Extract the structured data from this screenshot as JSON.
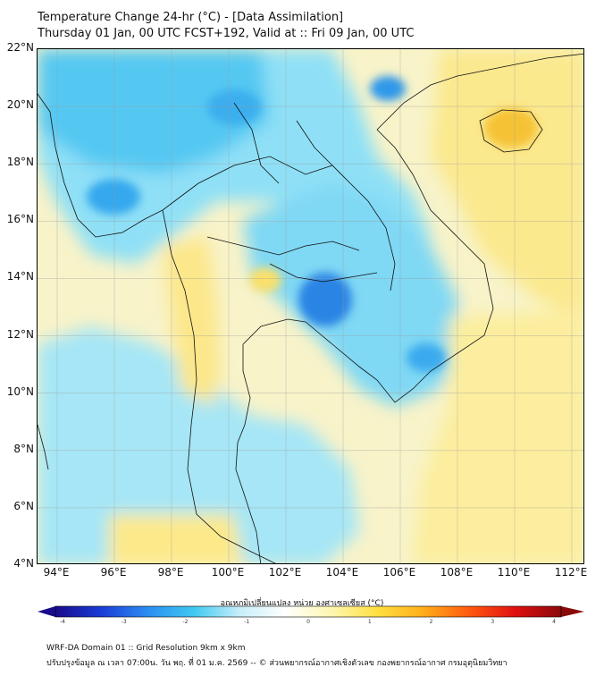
{
  "title": {
    "line1": "Temperature Change 24-hr (°C) - [Data Assimilation]",
    "line2": "Thursday 01 Jan, 00 UTC FCST+192, Valid at :: Fri 09 Jan, 00 UTC"
  },
  "axes": {
    "lat_labels": [
      "22°N",
      "20°N",
      "18°N",
      "16°N",
      "14°N",
      "12°N",
      "10°N",
      "8°N",
      "6°N",
      "4°N"
    ],
    "lon_labels": [
      "94°E",
      "96°E",
      "98°E",
      "100°E",
      "102°E",
      "104°E",
      "106°E",
      "108°E",
      "110°E",
      "112°E"
    ]
  },
  "colorbar": {
    "label": "อุณหภูมิเปลี่ยนแปลง หน่วย องศาเซลเซียส (°C)",
    "ticks": [
      "-4",
      "-3",
      "-2",
      "-1",
      "0",
      "1",
      "2",
      "3",
      "4"
    ],
    "colors": [
      "#1a0a8c",
      "#1a3dd6",
      "#2b8cf0",
      "#3ec8f0",
      "#c6eefa",
      "#ffffff",
      "#fff6b0",
      "#ffe040",
      "#ffae1a",
      "#ff5a0f",
      "#e01010",
      "#8a0a0a"
    ]
  },
  "footer": {
    "line1": "WRF-DA Domain 01 :: Grid Resolution 9km x 9km",
    "line2": "ปรับปรุงข้อมูล ณ เวลา 07:00น. วัน พฤ. ที่ 01 ม.ค. 2569 -- © ส่วนพยากรณ์อากาศเชิงตัวเลข กองพยากรณ์อากาศ กรมอุตุนิยมวิทยา"
  }
}
